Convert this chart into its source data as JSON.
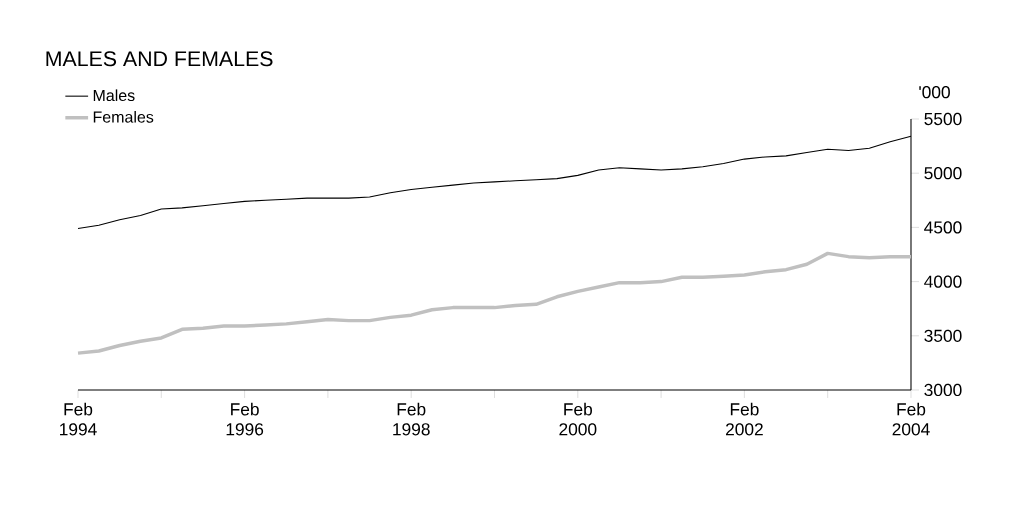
{
  "chart_data": {
    "type": "line",
    "title": "MALES AND FEMALES",
    "ylabel": "'000",
    "x": [
      "1994-02",
      "1994-05",
      "1994-08",
      "1994-11",
      "1995-02",
      "1995-05",
      "1995-08",
      "1995-11",
      "1996-02",
      "1996-05",
      "1996-08",
      "1996-11",
      "1997-02",
      "1997-05",
      "1997-08",
      "1997-11",
      "1998-02",
      "1998-05",
      "1998-08",
      "1998-11",
      "1999-02",
      "1999-05",
      "1999-08",
      "1999-11",
      "2000-02",
      "2000-05",
      "2000-08",
      "2000-11",
      "2001-02",
      "2001-05",
      "2001-08",
      "2001-11",
      "2002-02",
      "2002-05",
      "2002-08",
      "2002-11",
      "2003-02",
      "2003-05",
      "2003-08",
      "2003-11",
      "2004-02"
    ],
    "series": [
      {
        "name": "Males",
        "color": "#000000",
        "values": [
          4490,
          4520,
          4570,
          4610,
          4670,
          4680,
          4700,
          4720,
          4740,
          4750,
          4760,
          4770,
          4770,
          4770,
          4780,
          4820,
          4850,
          4870,
          4890,
          4910,
          4920,
          4930,
          4940,
          4950,
          4980,
          5030,
          5050,
          5040,
          5030,
          5040,
          5060,
          5090,
          5130,
          5150,
          5160,
          5190,
          5220,
          5210,
          5230,
          5290,
          5340
        ]
      },
      {
        "name": "Females",
        "color": "#c0c0c0",
        "values": [
          3340,
          3360,
          3410,
          3450,
          3480,
          3560,
          3570,
          3590,
          3590,
          3600,
          3610,
          3630,
          3650,
          3640,
          3640,
          3670,
          3690,
          3740,
          3760,
          3760,
          3760,
          3780,
          3790,
          3860,
          3910,
          3950,
          3990,
          3990,
          4000,
          4040,
          4040,
          4050,
          4060,
          4090,
          4110,
          4160,
          4260,
          4230,
          4220,
          4230,
          4230
        ]
      }
    ],
    "xlim": [
      "1994-02",
      "2004-02"
    ],
    "xticks": [
      {
        "value": "1994-02",
        "label": "Feb 1994"
      },
      {
        "value": "1995-02",
        "label": null
      },
      {
        "value": "1996-02",
        "label": "Feb 1996"
      },
      {
        "value": "1997-02",
        "label": null
      },
      {
        "value": "1998-02",
        "label": "Feb 1998"
      },
      {
        "value": "1999-02",
        "label": null
      },
      {
        "value": "2000-02",
        "label": "Feb 2000"
      },
      {
        "value": "2001-02",
        "label": null
      },
      {
        "value": "2002-02",
        "label": "Feb 2002"
      },
      {
        "value": "2003-02",
        "label": null
      },
      {
        "value": "2004-02",
        "label": "Feb 2004"
      }
    ],
    "ylim": [
      3000,
      5500
    ],
    "yticks": [
      3000,
      3500,
      4000,
      4500,
      5000,
      5500
    ],
    "legend": "top left",
    "grid": false,
    "marker": "none",
    "line_style": "solid"
  }
}
